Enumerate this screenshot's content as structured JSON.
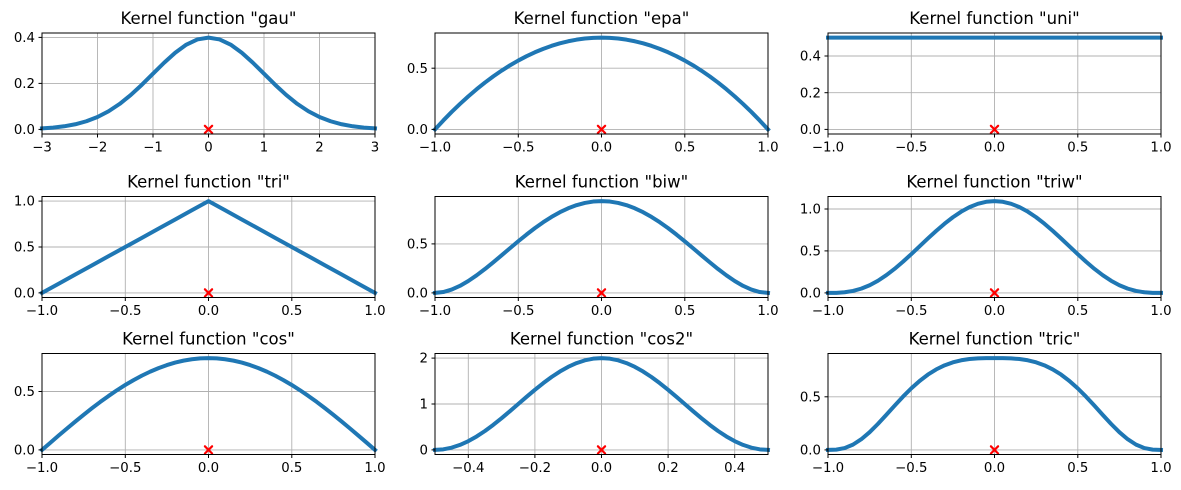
{
  "figure": {
    "background": "#ffffff",
    "line_color": "#1f77b4",
    "marker_color": "#ff0000",
    "grid_color": "#b0b0b0",
    "spine_color": "#000000"
  },
  "chart_data": [
    {
      "type": "line",
      "kernel": "gau",
      "title": "Kernel function \"gau\"",
      "xlabel": "",
      "ylabel": "",
      "grid": true,
      "xlim": [
        -3,
        3
      ],
      "ylim": [
        -0.0199,
        0.4189
      ],
      "xticks": {
        "values": [
          -3,
          -2,
          -1,
          0,
          1,
          2,
          3
        ],
        "labels": [
          "−3",
          "−2",
          "−1",
          "0",
          "1",
          "2",
          "3"
        ]
      },
      "yticks": {
        "values": [
          0.0,
          0.2,
          0.4
        ],
        "labels": [
          "0.0",
          "0.2",
          "0.4"
        ]
      },
      "marker": {
        "x": 0,
        "y": 0,
        "style": "x"
      },
      "x": [
        -3,
        -2.8,
        -2.6,
        -2.4,
        -2.2,
        -2,
        -1.8,
        -1.6,
        -1.4,
        -1.2,
        -1,
        -0.8,
        -0.6,
        -0.4,
        -0.2,
        0,
        0.2,
        0.4,
        0.6,
        0.8,
        1,
        1.2,
        1.4,
        1.6,
        1.8,
        2,
        2.2,
        2.4,
        2.6,
        2.8,
        3
      ],
      "y": [
        0.0044,
        0.0079,
        0.0136,
        0.0224,
        0.0355,
        0.054,
        0.079,
        0.1109,
        0.1497,
        0.1942,
        0.242,
        0.2897,
        0.3332,
        0.3683,
        0.391,
        0.3989,
        0.391,
        0.3683,
        0.3332,
        0.2897,
        0.242,
        0.1942,
        0.1497,
        0.1109,
        0.079,
        0.054,
        0.0355,
        0.0224,
        0.0136,
        0.0079,
        0.0044
      ]
    },
    {
      "type": "line",
      "kernel": "epa",
      "title": "Kernel function \"epa\"",
      "xlabel": "",
      "ylabel": "",
      "grid": true,
      "xlim": [
        -1,
        1
      ],
      "ylim": [
        -0.0375,
        0.7875
      ],
      "xticks": {
        "values": [
          -1,
          -0.5,
          0,
          0.5,
          1
        ],
        "labels": [
          "−1.0",
          "−0.5",
          "0.0",
          "0.5",
          "1.0"
        ]
      },
      "yticks": {
        "values": [
          0.0,
          0.5
        ],
        "labels": [
          "0.0",
          "0.5"
        ]
      },
      "marker": {
        "x": 0,
        "y": 0,
        "style": "x"
      },
      "x": [
        -1,
        -0.95,
        -0.9,
        -0.85,
        -0.8,
        -0.75,
        -0.7,
        -0.65,
        -0.6,
        -0.55,
        -0.5,
        -0.45,
        -0.4,
        -0.35,
        -0.3,
        -0.25,
        -0.2,
        -0.15,
        -0.1,
        -0.05,
        0,
        0.05,
        0.1,
        0.15,
        0.2,
        0.25,
        0.3,
        0.35,
        0.4,
        0.45,
        0.5,
        0.55,
        0.6,
        0.65,
        0.7,
        0.75,
        0.8,
        0.85,
        0.9,
        0.95,
        1
      ],
      "y": [
        0,
        0.0731,
        0.1425,
        0.2081,
        0.27,
        0.3281,
        0.3825,
        0.4331,
        0.48,
        0.5231,
        0.5625,
        0.5981,
        0.63,
        0.6581,
        0.6825,
        0.7031,
        0.72,
        0.7331,
        0.7425,
        0.7481,
        0.75,
        0.7481,
        0.7425,
        0.7331,
        0.72,
        0.7031,
        0.6825,
        0.6581,
        0.63,
        0.5981,
        0.5625,
        0.5231,
        0.48,
        0.4331,
        0.3825,
        0.3281,
        0.27,
        0.2081,
        0.1425,
        0.0731,
        0
      ]
    },
    {
      "type": "line",
      "kernel": "uni",
      "title": "Kernel function \"uni\"",
      "xlabel": "",
      "ylabel": "",
      "grid": true,
      "xlim": [
        -1,
        1
      ],
      "ylim": [
        -0.025,
        0.525
      ],
      "xticks": {
        "values": [
          -1,
          -0.5,
          0,
          0.5,
          1
        ],
        "labels": [
          "−1.0",
          "−0.5",
          "0.0",
          "0.5",
          "1.0"
        ]
      },
      "yticks": {
        "values": [
          0.0,
          0.2,
          0.4
        ],
        "labels": [
          "0.0",
          "0.2",
          "0.4"
        ]
      },
      "marker": {
        "x": 0,
        "y": 0,
        "style": "x"
      },
      "x": [
        -1,
        1
      ],
      "y": [
        0.5,
        0.5
      ]
    },
    {
      "type": "line",
      "kernel": "tri",
      "title": "Kernel function \"tri\"",
      "xlabel": "",
      "ylabel": "",
      "grid": true,
      "xlim": [
        -1,
        1
      ],
      "ylim": [
        -0.05,
        1.05
      ],
      "xticks": {
        "values": [
          -1,
          -0.5,
          0,
          0.5,
          1
        ],
        "labels": [
          "−1.0",
          "−0.5",
          "0.0",
          "0.5",
          "1.0"
        ]
      },
      "yticks": {
        "values": [
          0.0,
          0.5,
          1.0
        ],
        "labels": [
          "0.0",
          "0.5",
          "1.0"
        ]
      },
      "marker": {
        "x": 0,
        "y": 0,
        "style": "x"
      },
      "x": [
        -1,
        -0.9,
        -0.8,
        -0.7,
        -0.6,
        -0.5,
        -0.4,
        -0.3,
        -0.2,
        -0.1,
        0,
        0.1,
        0.2,
        0.3,
        0.4,
        0.5,
        0.6,
        0.7,
        0.8,
        0.9,
        1
      ],
      "y": [
        0,
        0.1,
        0.2,
        0.3,
        0.4,
        0.5,
        0.6,
        0.7,
        0.8,
        0.9,
        1,
        0.9,
        0.8,
        0.7,
        0.6,
        0.5,
        0.4,
        0.3,
        0.2,
        0.1,
        0
      ]
    },
    {
      "type": "line",
      "kernel": "biw",
      "title": "Kernel function \"biw\"",
      "xlabel": "",
      "ylabel": "",
      "grid": true,
      "xlim": [
        -1,
        1
      ],
      "ylim": [
        -0.0469,
        0.9844
      ],
      "xticks": {
        "values": [
          -1,
          -0.5,
          0,
          0.5,
          1
        ],
        "labels": [
          "−1.0",
          "−0.5",
          "0.0",
          "0.5",
          "1.0"
        ]
      },
      "yticks": {
        "values": [
          0.0,
          0.5
        ],
        "labels": [
          "0.0",
          "0.5"
        ]
      },
      "marker": {
        "x": 0,
        "y": 0,
        "style": "x"
      },
      "x": [
        -1,
        -0.95,
        -0.9,
        -0.85,
        -0.8,
        -0.75,
        -0.7,
        -0.65,
        -0.6,
        -0.55,
        -0.5,
        -0.45,
        -0.4,
        -0.35,
        -0.3,
        -0.25,
        -0.2,
        -0.15,
        -0.1,
        -0.05,
        0,
        0.05,
        0.1,
        0.15,
        0.2,
        0.25,
        0.3,
        0.35,
        0.4,
        0.45,
        0.5,
        0.55,
        0.6,
        0.65,
        0.7,
        0.75,
        0.8,
        0.85,
        0.9,
        0.95,
        1
      ],
      "y": [
        0,
        0.0089,
        0.0338,
        0.0722,
        0.1215,
        0.1794,
        0.2438,
        0.3127,
        0.384,
        0.4561,
        0.5273,
        0.5963,
        0.6615,
        0.7219,
        0.7763,
        0.824,
        0.864,
        0.8958,
        0.9188,
        0.9328,
        0.9375,
        0.9328,
        0.9188,
        0.8958,
        0.864,
        0.824,
        0.7763,
        0.7219,
        0.6615,
        0.5963,
        0.5273,
        0.4561,
        0.384,
        0.3127,
        0.2438,
        0.1794,
        0.1215,
        0.0722,
        0.0338,
        0.0089,
        0
      ]
    },
    {
      "type": "line",
      "kernel": "triw",
      "title": "Kernel function \"triw\"",
      "xlabel": "",
      "ylabel": "",
      "grid": true,
      "xlim": [
        -1,
        1
      ],
      "ylim": [
        -0.0547,
        1.1484
      ],
      "xticks": {
        "values": [
          -1,
          -0.5,
          0,
          0.5,
          1
        ],
        "labels": [
          "−1.0",
          "−0.5",
          "0.0",
          "0.5",
          "1.0"
        ]
      },
      "yticks": {
        "values": [
          0.0,
          0.5,
          1.0
        ],
        "labels": [
          "0.0",
          "0.5",
          "1.0"
        ]
      },
      "marker": {
        "x": 0,
        "y": 0,
        "style": "x"
      },
      "x": [
        -1,
        -0.95,
        -0.9,
        -0.85,
        -0.8,
        -0.75,
        -0.7,
        -0.65,
        -0.6,
        -0.55,
        -0.5,
        -0.45,
        -0.4,
        -0.35,
        -0.3,
        -0.25,
        -0.2,
        -0.15,
        -0.1,
        -0.05,
        0,
        0.05,
        0.1,
        0.15,
        0.2,
        0.25,
        0.3,
        0.35,
        0.4,
        0.45,
        0.5,
        0.55,
        0.6,
        0.65,
        0.7,
        0.75,
        0.8,
        0.85,
        0.9,
        0.95,
        1
      ],
      "y": [
        0,
        0.001,
        0.0075,
        0.0234,
        0.051,
        0.0916,
        0.1451,
        0.2107,
        0.2867,
        0.3712,
        0.4614,
        0.5548,
        0.6483,
        0.739,
        0.8242,
        0.9012,
        0.9677,
        1.0216,
        1.0613,
        1.0856,
        1.0938,
        1.0856,
        1.0613,
        1.0216,
        0.9677,
        0.9012,
        0.8242,
        0.739,
        0.6483,
        0.5548,
        0.4614,
        0.3712,
        0.2867,
        0.2107,
        0.1451,
        0.0916,
        0.051,
        0.0234,
        0.0075,
        0.001,
        0
      ]
    },
    {
      "type": "line",
      "kernel": "cos",
      "title": "Kernel function \"cos\"",
      "xlabel": "",
      "ylabel": "",
      "grid": true,
      "xlim": [
        -1,
        1
      ],
      "ylim": [
        -0.0393,
        0.8247
      ],
      "xticks": {
        "values": [
          -1,
          -0.5,
          0,
          0.5,
          1
        ],
        "labels": [
          "−1.0",
          "−0.5",
          "0.0",
          "0.5",
          "1.0"
        ]
      },
      "yticks": {
        "values": [
          0.0,
          0.5
        ],
        "labels": [
          "0.0",
          "0.5"
        ]
      },
      "marker": {
        "x": 0,
        "y": 0,
        "style": "x"
      },
      "x": [
        -1,
        -0.95,
        -0.9,
        -0.85,
        -0.8,
        -0.75,
        -0.7,
        -0.65,
        -0.6,
        -0.55,
        -0.5,
        -0.45,
        -0.4,
        -0.35,
        -0.3,
        -0.25,
        -0.2,
        -0.15,
        -0.1,
        -0.05,
        0,
        0.05,
        0.1,
        0.15,
        0.2,
        0.25,
        0.3,
        0.35,
        0.4,
        0.45,
        0.5,
        0.55,
        0.6,
        0.65,
        0.7,
        0.75,
        0.8,
        0.85,
        0.9,
        0.95,
        1
      ],
      "y": [
        0,
        0.0616,
        0.1229,
        0.1833,
        0.2427,
        0.3006,
        0.3566,
        0.4104,
        0.4616,
        0.5101,
        0.5554,
        0.5972,
        0.6354,
        0.6697,
        0.6998,
        0.7256,
        0.747,
        0.7637,
        0.7757,
        0.783,
        0.7854,
        0.783,
        0.7757,
        0.7637,
        0.747,
        0.7256,
        0.6998,
        0.6697,
        0.6354,
        0.5972,
        0.5554,
        0.5101,
        0.4616,
        0.4104,
        0.3566,
        0.3006,
        0.2427,
        0.1833,
        0.1229,
        0.0616,
        0
      ]
    },
    {
      "type": "line",
      "kernel": "cos2",
      "title": "Kernel function \"cos2\"",
      "xlabel": "",
      "ylabel": "",
      "grid": true,
      "xlim": [
        -0.5,
        0.5
      ],
      "ylim": [
        -0.1,
        2.1
      ],
      "xticks": {
        "values": [
          -0.4,
          -0.2,
          0,
          0.2,
          0.4
        ],
        "labels": [
          "−0.4",
          "−0.2",
          "0.0",
          "0.2",
          "0.4"
        ]
      },
      "yticks": {
        "values": [
          0,
          1,
          2
        ],
        "labels": [
          "0",
          "1",
          "2"
        ]
      },
      "marker": {
        "x": 0,
        "y": 0,
        "style": "x"
      },
      "x": [
        -0.5,
        -0.475,
        -0.45,
        -0.425,
        -0.4,
        -0.375,
        -0.35,
        -0.325,
        -0.3,
        -0.275,
        -0.25,
        -0.225,
        -0.2,
        -0.175,
        -0.15,
        -0.125,
        -0.1,
        -0.075,
        -0.05,
        -0.025,
        0,
        0.025,
        0.05,
        0.075,
        0.1,
        0.125,
        0.15,
        0.175,
        0.2,
        0.225,
        0.25,
        0.275,
        0.3,
        0.325,
        0.35,
        0.375,
        0.4,
        0.425,
        0.45,
        0.475,
        0.5
      ],
      "y": [
        0,
        0.0123,
        0.0489,
        0.109,
        0.191,
        0.2929,
        0.4122,
        0.546,
        0.691,
        0.8436,
        1,
        1.1564,
        1.309,
        1.454,
        1.5878,
        1.7071,
        1.809,
        1.891,
        1.9511,
        1.9877,
        2,
        1.9877,
        1.9511,
        1.891,
        1.809,
        1.7071,
        1.5878,
        1.454,
        1.309,
        1.1564,
        1,
        0.8436,
        0.691,
        0.546,
        0.4122,
        0.2929,
        0.191,
        0.109,
        0.0489,
        0.0123,
        0
      ]
    },
    {
      "type": "line",
      "kernel": "tric",
      "title": "Kernel function \"tric\"",
      "xlabel": "",
      "ylabel": "",
      "grid": true,
      "xlim": [
        -1,
        1
      ],
      "ylim": [
        -0.0432,
        0.9074
      ],
      "xticks": {
        "values": [
          -1,
          -0.5,
          0,
          0.5,
          1
        ],
        "labels": [
          "−1.0",
          "−0.5",
          "0.0",
          "0.5",
          "1.0"
        ]
      },
      "yticks": {
        "values": [
          0.0,
          0.5
        ],
        "labels": [
          "0.0",
          "0.5"
        ]
      },
      "marker": {
        "x": 0,
        "y": 0,
        "style": "x"
      },
      "x": [
        -1,
        -0.95,
        -0.9,
        -0.85,
        -0.8,
        -0.75,
        -0.7,
        -0.65,
        -0.6,
        -0.55,
        -0.5,
        -0.45,
        -0.4,
        -0.35,
        -0.3,
        -0.25,
        -0.2,
        -0.15,
        -0.1,
        -0.05,
        0,
        0.05,
        0.1,
        0.15,
        0.2,
        0.25,
        0.3,
        0.35,
        0.4,
        0.45,
        0.5,
        0.55,
        0.6,
        0.65,
        0.7,
        0.75,
        0.8,
        0.85,
        0.9,
        0.95,
        1
      ],
      "y": [
        0,
        0.0025,
        0.0172,
        0.0497,
        0.1004,
        0.167,
        0.2451,
        0.3299,
        0.4165,
        0.5007,
        0.579,
        0.6488,
        0.7087,
        0.7578,
        0.7961,
        0.8244,
        0.8437,
        0.8555,
        0.8616,
        0.8639,
        0.8642,
        0.8639,
        0.8616,
        0.8555,
        0.8437,
        0.8244,
        0.7961,
        0.7578,
        0.7087,
        0.6488,
        0.579,
        0.5007,
        0.4165,
        0.3299,
        0.2451,
        0.167,
        0.1004,
        0.0497,
        0.0172,
        0.0025,
        0
      ]
    }
  ]
}
